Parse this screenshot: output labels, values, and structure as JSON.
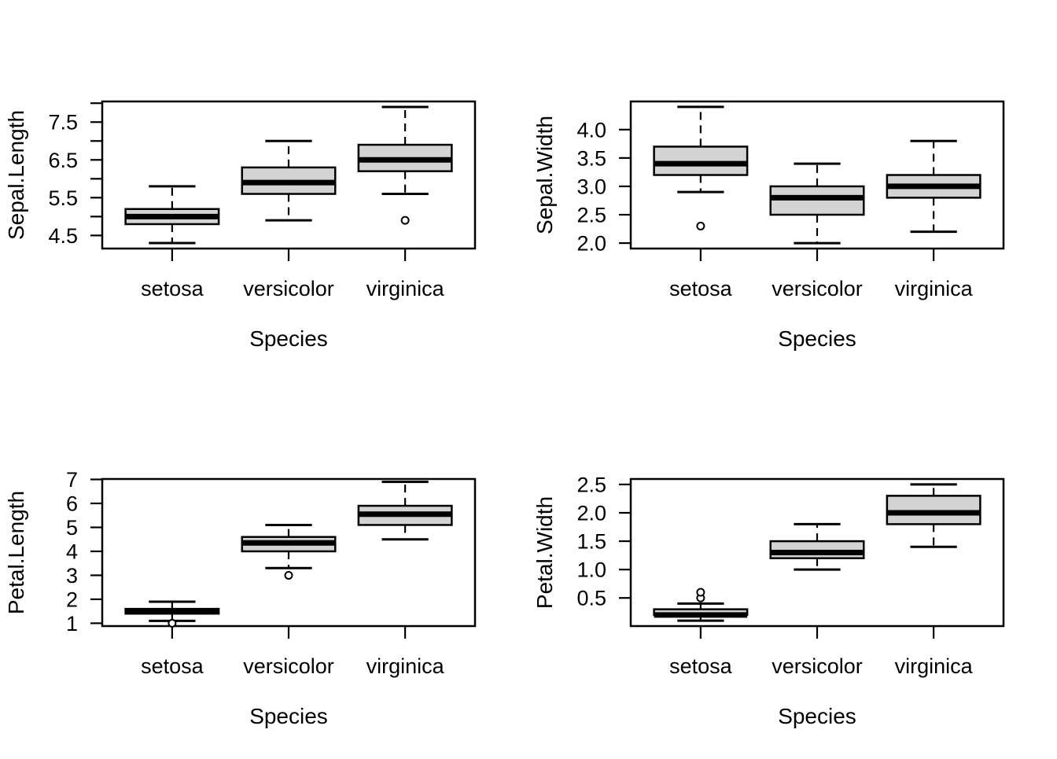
{
  "figure": {
    "background": "#ffffff",
    "foreground": "#000000",
    "box_fill": "#d3d3d3",
    "rows": 2,
    "cols": 2
  },
  "chart_data": [
    {
      "type": "boxplot",
      "title": "",
      "ylabel": "Sepal.Length",
      "xlabel": "Species",
      "categories": [
        "setosa",
        "versicolor",
        "virginica"
      ],
      "xlim": [
        0.4,
        3.6
      ],
      "ylim": [
        4.154,
        8.046
      ],
      "yticks": [
        4.5,
        5.0,
        5.5,
        6.0,
        6.5,
        7.0,
        7.5,
        8.0
      ],
      "ytick_labels": [
        "4.5",
        "",
        "5.5",
        "",
        "6.5",
        "",
        "7.5",
        ""
      ],
      "grid": false,
      "legend": "none",
      "series": [
        {
          "name": "setosa",
          "lower_whisker": 4.3,
          "q1": 4.8,
          "median": 5.0,
          "q3": 5.2,
          "upper_whisker": 5.8,
          "outliers": []
        },
        {
          "name": "versicolor",
          "lower_whisker": 4.9,
          "q1": 5.6,
          "median": 5.9,
          "q3": 6.3,
          "upper_whisker": 7.0,
          "outliers": []
        },
        {
          "name": "virginica",
          "lower_whisker": 5.6,
          "q1": 6.2,
          "median": 6.5,
          "q3": 6.9,
          "upper_whisker": 7.9,
          "outliers": [
            4.9
          ]
        }
      ]
    },
    {
      "type": "boxplot",
      "title": "",
      "ylabel": "Sepal.Width",
      "xlabel": "Species",
      "categories": [
        "setosa",
        "versicolor",
        "virginica"
      ],
      "xlim": [
        0.4,
        3.6
      ],
      "ylim": [
        1.904,
        4.496
      ],
      "yticks": [
        2.0,
        2.5,
        3.0,
        3.5,
        4.0
      ],
      "ytick_labels": [
        "2.0",
        "2.5",
        "3.0",
        "3.5",
        "4.0"
      ],
      "grid": false,
      "legend": "none",
      "series": [
        {
          "name": "setosa",
          "lower_whisker": 2.9,
          "q1": 3.2,
          "median": 3.4,
          "q3": 3.7,
          "upper_whisker": 4.4,
          "outliers": [
            2.3
          ]
        },
        {
          "name": "versicolor",
          "lower_whisker": 2.0,
          "q1": 2.5,
          "median": 2.8,
          "q3": 3.0,
          "upper_whisker": 3.4,
          "outliers": []
        },
        {
          "name": "virginica",
          "lower_whisker": 2.2,
          "q1": 2.8,
          "median": 3.0,
          "q3": 3.2,
          "upper_whisker": 3.8,
          "outliers": []
        }
      ]
    },
    {
      "type": "boxplot",
      "title": "",
      "ylabel": "Petal.Length",
      "xlabel": "Species",
      "categories": [
        "setosa",
        "versicolor",
        "virginica"
      ],
      "xlim": [
        0.4,
        3.6
      ],
      "ylim": [
        0.882,
        7.018
      ],
      "yticks": [
        1,
        2,
        3,
        4,
        5,
        6,
        7
      ],
      "ytick_labels": [
        "1",
        "2",
        "3",
        "4",
        "5",
        "6",
        "7"
      ],
      "grid": false,
      "legend": "none",
      "series": [
        {
          "name": "setosa",
          "lower_whisker": 1.1,
          "q1": 1.4,
          "median": 1.5,
          "q3": 1.6,
          "upper_whisker": 1.9,
          "outliers": [
            1.0
          ]
        },
        {
          "name": "versicolor",
          "lower_whisker": 3.3,
          "q1": 4.0,
          "median": 4.35,
          "q3": 4.6,
          "upper_whisker": 5.1,
          "outliers": [
            3.0
          ]
        },
        {
          "name": "virginica",
          "lower_whisker": 4.5,
          "q1": 5.1,
          "median": 5.55,
          "q3": 5.9,
          "upper_whisker": 6.9,
          "outliers": []
        }
      ]
    },
    {
      "type": "boxplot",
      "title": "",
      "ylabel": "Petal.Width",
      "xlabel": "Species",
      "categories": [
        "setosa",
        "versicolor",
        "virginica"
      ],
      "xlim": [
        0.4,
        3.6
      ],
      "ylim": [
        0.004,
        2.596
      ],
      "yticks": [
        0.5,
        1.0,
        1.5,
        2.0,
        2.5
      ],
      "ytick_labels": [
        "0.5",
        "1.0",
        "1.5",
        "2.0",
        "2.5"
      ],
      "grid": false,
      "legend": "none",
      "series": [
        {
          "name": "setosa",
          "lower_whisker": 0.1,
          "q1": 0.2,
          "median": 0.2,
          "q3": 0.3,
          "upper_whisker": 0.4,
          "outliers": [
            0.5,
            0.6
          ]
        },
        {
          "name": "versicolor",
          "lower_whisker": 1.0,
          "q1": 1.2,
          "median": 1.3,
          "q3": 1.5,
          "upper_whisker": 1.8,
          "outliers": []
        },
        {
          "name": "virginica",
          "lower_whisker": 1.4,
          "q1": 1.8,
          "median": 2.0,
          "q3": 2.3,
          "upper_whisker": 2.5,
          "outliers": []
        }
      ]
    }
  ]
}
